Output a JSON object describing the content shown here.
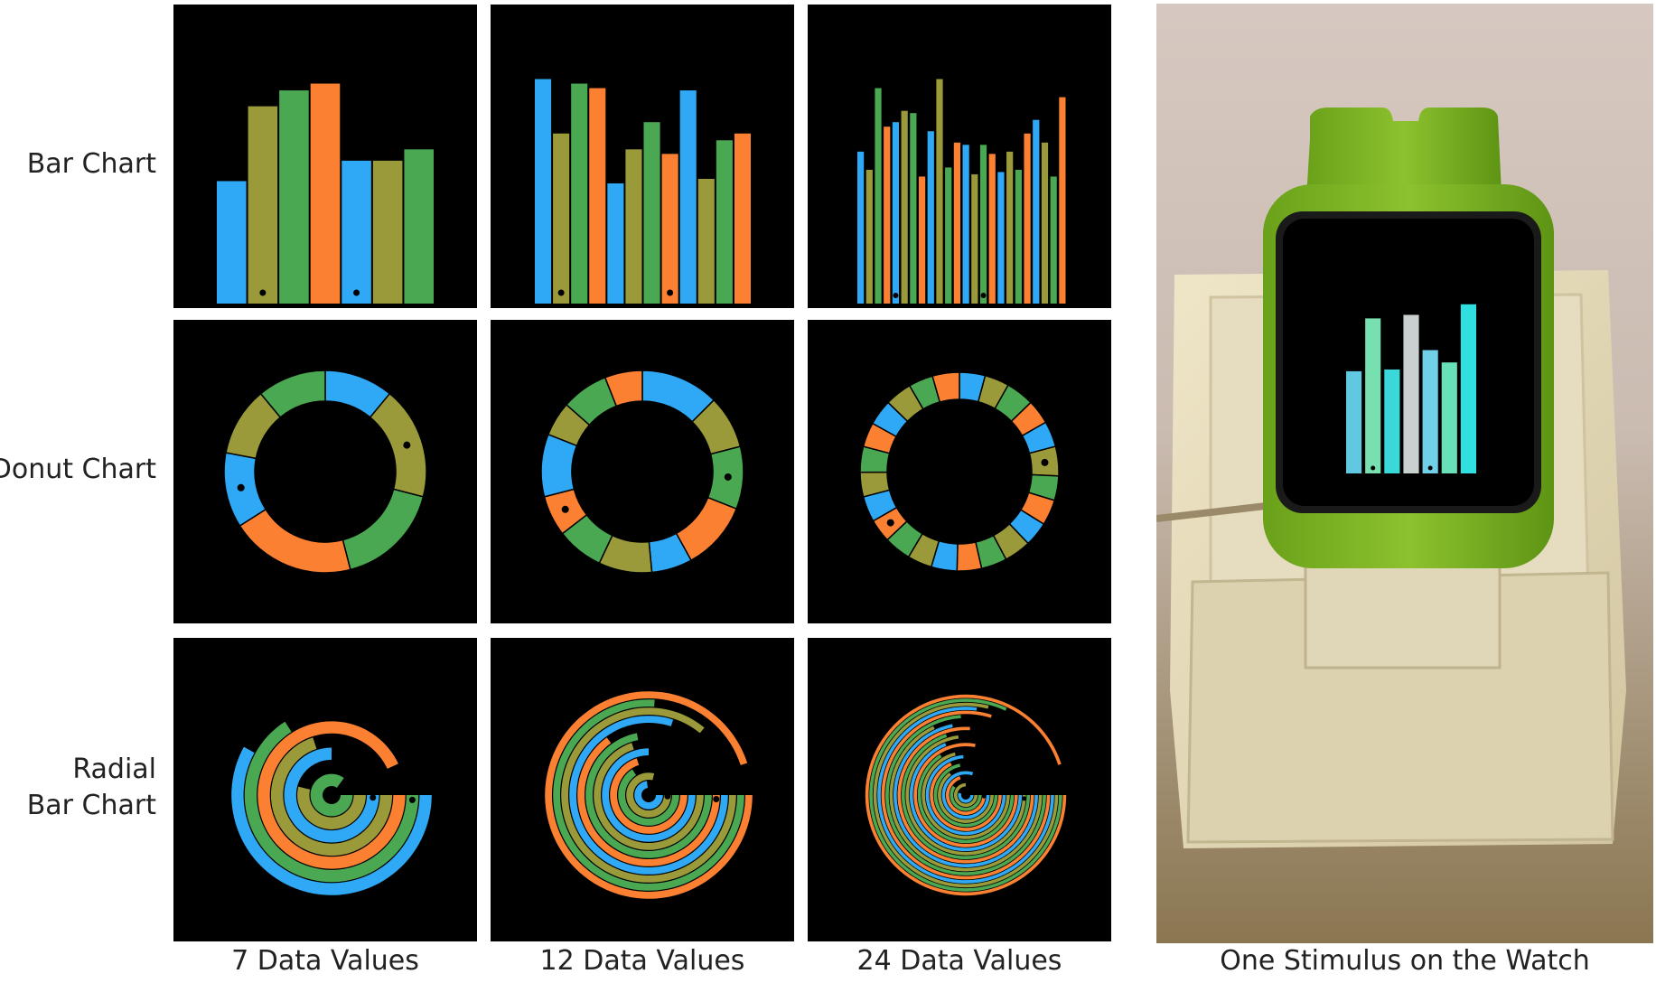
{
  "row_labels": {
    "bar": "Bar Chart",
    "donut": "Donut Chart",
    "radial_line1": "Radial",
    "radial_line2": "Bar Chart"
  },
  "col_labels": [
    "7 Data Values",
    "12 Data Values",
    "24 Data Values"
  ],
  "watch_caption": "One Stimulus on the Watch",
  "colors": {
    "blue": "#2fa8f5",
    "olive": "#9a9a3a",
    "green": "#4aa852",
    "orange": "#fb8032",
    "watch_band": "#7bb623",
    "watch_bars": [
      "#60c8e0",
      "#78e0b0",
      "#3ad8d8",
      "#c8d0d0",
      "#70d0e8",
      "#68e0b8",
      "#30e0e0"
    ]
  },
  "chart_data": [
    {
      "type": "bar",
      "n": 7,
      "values": [
        0.54,
        0.87,
        0.94,
        0.97,
        0.63,
        0.63,
        0.68
      ],
      "colors": [
        "blue",
        "olive",
        "green",
        "orange",
        "blue",
        "olive",
        "green"
      ],
      "marked_indices": [
        1,
        4
      ]
    },
    {
      "type": "bar",
      "n": 12,
      "values": [
        0.99,
        0.75,
        0.97,
        0.95,
        0.53,
        0.68,
        0.8,
        0.66,
        0.94,
        0.55,
        0.72,
        0.75
      ],
      "colors": [
        "blue",
        "olive",
        "green",
        "orange",
        "blue",
        "olive",
        "green",
        "orange",
        "blue",
        "olive",
        "green",
        "orange"
      ],
      "marked_indices": [
        1,
        7
      ]
    },
    {
      "type": "bar",
      "n": 24,
      "values": [
        0.67,
        0.59,
        0.95,
        0.78,
        0.8,
        0.85,
        0.84,
        0.56,
        0.76,
        0.99,
        0.6,
        0.71,
        0.7,
        0.57,
        0.7,
        0.66,
        0.58,
        0.67,
        0.59,
        0.75,
        0.81,
        0.71,
        0.56,
        0.91
      ],
      "colors": [
        "blue",
        "olive",
        "green",
        "orange",
        "blue",
        "olive",
        "green",
        "orange",
        "blue",
        "olive",
        "green",
        "orange",
        "blue",
        "olive",
        "green",
        "orange",
        "blue",
        "olive",
        "green",
        "orange",
        "blue",
        "olive",
        "green",
        "orange"
      ],
      "marked_indices": [
        4,
        14
      ]
    },
    {
      "type": "donut",
      "n": 7,
      "values": [
        0.11,
        0.18,
        0.17,
        0.2,
        0.12,
        0.11,
        0.11
      ],
      "colors": [
        "blue",
        "olive",
        "green",
        "orange",
        "blue",
        "olive",
        "green"
      ],
      "marked_indices": [
        1,
        4
      ]
    },
    {
      "type": "donut",
      "n": 12,
      "values": [
        0.125,
        0.085,
        0.1,
        0.11,
        0.065,
        0.085,
        0.075,
        0.065,
        0.1,
        0.055,
        0.075,
        0.06
      ],
      "colors": [
        "blue",
        "olive",
        "green",
        "orange",
        "blue",
        "olive",
        "green",
        "orange",
        "blue",
        "olive",
        "green",
        "orange"
      ],
      "marked_indices": [
        2,
        7
      ]
    },
    {
      "type": "donut",
      "n": 24,
      "values": [
        0.042,
        0.04,
        0.046,
        0.04,
        0.042,
        0.048,
        0.04,
        0.042,
        0.04,
        0.044,
        0.042,
        0.04,
        0.042,
        0.04,
        0.044,
        0.038,
        0.042,
        0.04,
        0.042,
        0.04,
        0.042,
        0.044,
        0.04,
        0.044
      ],
      "colors": [
        "blue",
        "olive",
        "green",
        "orange",
        "blue",
        "olive",
        "green",
        "orange",
        "blue",
        "olive",
        "green",
        "orange",
        "blue",
        "olive",
        "green",
        "orange",
        "blue",
        "olive",
        "green",
        "orange",
        "blue",
        "olive",
        "green",
        "orange"
      ],
      "marked_indices": [
        5,
        15
      ]
    },
    {
      "type": "radial-bar",
      "n": 7,
      "values": [
        0.85,
        0.54,
        0.75,
        0.7,
        0.93,
        0.66,
        0.58
      ],
      "colors": [
        "green",
        "olive",
        "blue",
        "olive",
        "orange",
        "green",
        "blue"
      ],
      "marked_indices": [
        2,
        5
      ]
    },
    {
      "type": "radial-bar",
      "n": 12,
      "values": [
        0.73,
        0.79,
        0.66,
        0.7,
        0.75,
        0.7,
        0.72,
        0.65,
        0.8,
        0.86,
        0.76,
        0.95
      ],
      "colors": [
        "blue",
        "olive",
        "green",
        "orange",
        "blue",
        "olive",
        "green",
        "orange",
        "blue",
        "olive",
        "green",
        "orange"
      ],
      "marked_indices": [
        1,
        7
      ]
    },
    {
      "type": "radial-bar",
      "n": 24,
      "values": [
        0.55,
        0.75,
        0.6,
        0.7,
        0.8,
        0.65,
        0.72,
        0.68,
        0.74,
        0.71,
        0.66,
        0.78,
        0.69,
        0.73,
        0.7,
        0.76,
        0.72,
        0.68,
        0.74,
        0.8,
        0.77,
        0.79,
        0.82,
        0.95
      ],
      "colors": [
        "blue",
        "olive",
        "green",
        "orange",
        "blue",
        "olive",
        "green",
        "orange",
        "blue",
        "olive",
        "green",
        "orange",
        "blue",
        "olive",
        "green",
        "orange",
        "blue",
        "olive",
        "green",
        "orange",
        "blue",
        "olive",
        "green",
        "orange"
      ],
      "marked_indices": [
        3,
        13
      ]
    },
    {
      "type": "bar",
      "n": 7,
      "values": [
        0.58,
        0.88,
        0.59,
        0.9,
        0.7,
        0.63,
        0.96
      ],
      "colors": [
        "watch_bars"
      ],
      "marked_indices": [
        1,
        4
      ]
    }
  ]
}
